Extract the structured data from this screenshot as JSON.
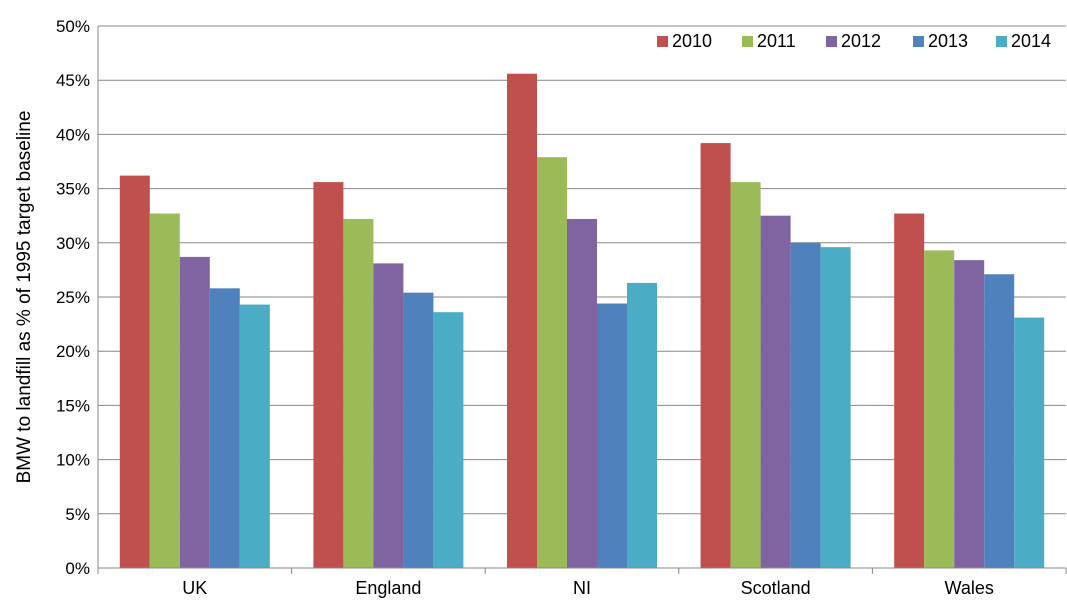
{
  "chart_data": {
    "type": "bar",
    "title": "",
    "xlabel": "",
    "ylabel": "BMW to landfill as % of 1995 target baseline",
    "ylim": [
      0,
      50
    ],
    "ytick_step": 5,
    "ytick_suffix": "%",
    "ytick_labels": [
      "0%",
      "5%",
      "10%",
      "15%",
      "20%",
      "25%",
      "30%",
      "35%",
      "40%",
      "45%",
      "50%"
    ],
    "grid": true,
    "legend_position": "top-right",
    "categories": [
      "UK",
      "England",
      "NI",
      "Scotland",
      "Wales"
    ],
    "series": [
      {
        "name": "2010",
        "color": "#c0504d",
        "values": [
          36.2,
          35.6,
          45.6,
          39.2,
          32.7
        ]
      },
      {
        "name": "2011",
        "color": "#9bbb59",
        "values": [
          32.7,
          32.2,
          37.9,
          35.6,
          29.3
        ]
      },
      {
        "name": "2012",
        "color": "#8064a2",
        "values": [
          28.7,
          28.1,
          32.2,
          32.5,
          28.4
        ]
      },
      {
        "name": "2013",
        "color": "#4f81bd",
        "values": [
          25.8,
          25.4,
          24.4,
          30.0,
          27.1
        ]
      },
      {
        "name": "2014",
        "color": "#4bacc6",
        "values": [
          24.3,
          23.6,
          26.3,
          29.6,
          23.1
        ]
      }
    ]
  }
}
